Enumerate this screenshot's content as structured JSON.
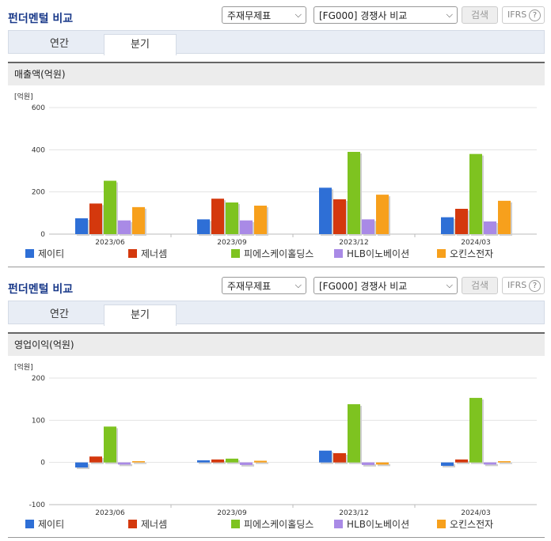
{
  "header": {
    "title": "펀더멘털 비교",
    "statement_select": "주재무제표",
    "compare_select": "[FG000] 경쟁사 비교",
    "search_label": "검색",
    "ifrs_label": "IFRS",
    "help_glyph": "?"
  },
  "tabs": [
    "연간",
    "분기"
  ],
  "active_tab": "분기",
  "colors": {
    "제이티": "#2e6fd6",
    "제너셈": "#d4380d",
    "피에스케이홀딩스": "#7ec320",
    "HLB이노베이션": "#a98ae6",
    "오킨스전자": "#f7a01c"
  },
  "chart_data": [
    {
      "type": "bar",
      "title": "매출액(억원)",
      "unit": "[억원]",
      "categories": [
        "2023/06",
        "2023/09",
        "2023/12",
        "2024/03"
      ],
      "ylim": [
        0,
        600
      ],
      "yticks": [
        0,
        200,
        400,
        600
      ],
      "series": [
        {
          "name": "제이티",
          "values": [
            75,
            70,
            220,
            80
          ]
        },
        {
          "name": "제너셈",
          "values": [
            145,
            168,
            165,
            120
          ]
        },
        {
          "name": "피에스케이홀딩스",
          "values": [
            253,
            150,
            390,
            380
          ]
        },
        {
          "name": "HLB이노베이션",
          "values": [
            65,
            65,
            70,
            60
          ]
        },
        {
          "name": "오킨스전자",
          "values": [
            128,
            135,
            187,
            158
          ]
        }
      ],
      "legend": "bottom"
    },
    {
      "type": "bar",
      "title": "영업이익(억원)",
      "unit": "[억원]",
      "categories": [
        "2023/06",
        "2023/09",
        "2023/12",
        "2024/03"
      ],
      "ylim": [
        -100,
        200
      ],
      "yticks": [
        -100,
        0,
        100,
        200
      ],
      "series": [
        {
          "name": "제이티",
          "values": [
            -12,
            5,
            28,
            -8
          ]
        },
        {
          "name": "제너셈",
          "values": [
            14,
            7,
            22,
            7
          ]
        },
        {
          "name": "피에스케이홀딩스",
          "values": [
            85,
            9,
            138,
            153
          ]
        },
        {
          "name": "HLB이노베이션",
          "values": [
            -5,
            -6,
            -6,
            -5
          ]
        },
        {
          "name": "오킨스전자",
          "values": [
            3,
            4,
            -5,
            3
          ]
        }
      ],
      "legend": "bottom"
    }
  ]
}
